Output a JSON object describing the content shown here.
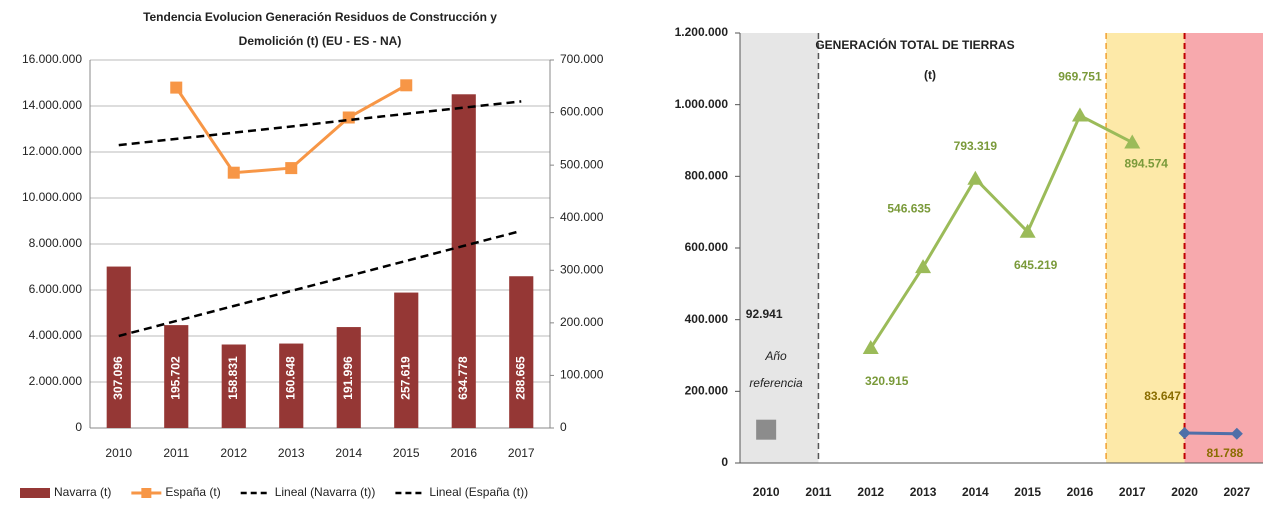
{
  "chart_data": [
    {
      "type": "combo",
      "title": [
        "Tendencia Evolucion Generación Residuos de Construcción y",
        "Demolición (t) (EU - ES - NA)"
      ],
      "categories": [
        "2010",
        "2011",
        "2012",
        "2013",
        "2014",
        "2015",
        "2016",
        "2017"
      ],
      "ylim": [
        0,
        16000000
      ],
      "yticks": [
        0,
        {
          "value": 2000000,
          "label": "2.000.000"
        },
        {
          "value": 4000000,
          "label": "4.000.000"
        },
        {
          "value": 6000000,
          "label": "6.000.000"
        },
        {
          "value": 8000000,
          "label": "8.000.000"
        },
        {
          "value": 10000000,
          "label": "10.000.000"
        },
        {
          "value": 12000000,
          "label": "12.000.000"
        },
        {
          "value": 14000000,
          "label": "14.000.000"
        },
        {
          "value": 16000000,
          "label": "16.000.000"
        }
      ],
      "y2lim": [
        0,
        700000
      ],
      "y2ticks": [
        0,
        {
          "value": 100000,
          "label": "100.000"
        },
        {
          "value": 200000,
          "label": "200.000"
        },
        {
          "value": 300000,
          "label": "300.000"
        },
        {
          "value": 400000,
          "label": "400.000"
        },
        {
          "value": 500000,
          "label": "500.000"
        },
        {
          "value": 600000,
          "label": "600.000"
        },
        {
          "value": 700000,
          "label": "700.000"
        }
      ],
      "grid": true,
      "legend": "bottom",
      "series": [
        {
          "name": "Navarra (t)",
          "type": "bar",
          "axis": "y2",
          "color": "#953735",
          "values": [
            307096,
            195702,
            158831,
            160648,
            191996,
            257619,
            634778,
            288665
          ],
          "value_labels": [
            "307.096",
            "195.702",
            "158.831",
            "160.648",
            "191.996",
            "257.619",
            "634.778",
            "288.665"
          ]
        },
        {
          "name": "España (t)",
          "type": "line",
          "axis": "y",
          "color": "#f79646",
          "values": [
            null,
            14800000,
            11100000,
            11300000,
            13500000,
            14900000,
            null,
            null
          ]
        },
        {
          "name": "Lineal (Navarra (t))",
          "type": "trend",
          "axis": "y2",
          "color": "#000000",
          "values": [
            175000,
            203600,
            232100,
            260700,
            289300,
            317900,
            346400,
            375000
          ]
        },
        {
          "name": "Lineal (España (t))",
          "type": "trend",
          "axis": "y",
          "color": "#000000",
          "values": [
            12300000,
            12570000,
            12840000,
            13110000,
            13390000,
            13660000,
            13930000,
            14200000
          ]
        }
      ]
    },
    {
      "type": "line",
      "title": [
        "GENERACIÓN TOTAL DE TIERRAS",
        "(t)"
      ],
      "categories": [
        "2010",
        "2011",
        "2012",
        "2013",
        "2014",
        "2015",
        "2016",
        "2017",
        "2020",
        "2027"
      ],
      "ylim": [
        0,
        1200000
      ],
      "yticks": [
        0,
        {
          "value": 200000,
          "label": "200.000"
        },
        {
          "value": 400000,
          "label": "400.000"
        },
        {
          "value": 600000,
          "label": "600.000"
        },
        {
          "value": 800000,
          "label": "800.000"
        },
        {
          "value": 1000000,
          "label": "1.000.000"
        },
        {
          "value": 1200000,
          "label": "1.200.000"
        }
      ],
      "annotation": [
        "Año",
        "referencia"
      ],
      "series": [
        {
          "color": "#8c8c8c",
          "marker": "square",
          "values": [
            92941,
            null,
            null,
            null,
            null,
            null,
            null,
            null,
            null,
            null
          ],
          "value_labels": [
            "92.941",
            null,
            null,
            null,
            null,
            null,
            null,
            null,
            null,
            null
          ]
        },
        {
          "color": "#9bbb59",
          "marker": "triangle",
          "values": [
            null,
            null,
            320915,
            546635,
            793319,
            645219,
            969751,
            894574,
            null,
            null
          ],
          "value_labels": [
            null,
            null,
            "320.915",
            "546.635",
            "793.319",
            "645.219",
            "969.751",
            "894.574",
            null,
            null
          ]
        },
        {
          "color": "#4f6fa8",
          "marker": "diamond",
          "values": [
            null,
            null,
            null,
            null,
            null,
            null,
            null,
            null,
            83647,
            81788
          ],
          "value_labels": [
            null,
            null,
            null,
            null,
            null,
            null,
            null,
            null,
            "83.647",
            "81.788"
          ]
        }
      ]
    }
  ]
}
